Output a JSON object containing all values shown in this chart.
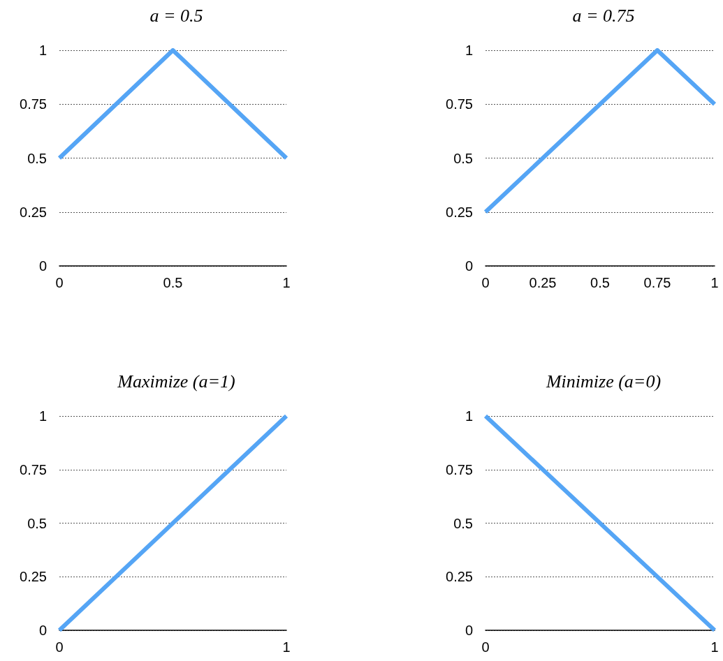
{
  "chart_data": [
    {
      "type": "line",
      "title": "a = 0.5",
      "x": [
        0,
        0.5,
        1
      ],
      "series": [
        {
          "color": "#55a5f5",
          "values": [
            0.5,
            1,
            0.5
          ]
        }
      ],
      "xlim": [
        0,
        1
      ],
      "xticks": [
        0,
        0.5,
        1
      ],
      "ylim": [
        0,
        1
      ],
      "yticks": [
        0,
        0.25,
        0.5,
        0.75,
        1
      ],
      "grid": "y",
      "line_style": "solid"
    },
    {
      "type": "line",
      "title": "a = 0.75",
      "x": [
        0,
        0.75,
        1
      ],
      "series": [
        {
          "color": "#55a5f5",
          "values": [
            0.25,
            1,
            0.75
          ]
        }
      ],
      "xlim": [
        0,
        1
      ],
      "xticks": [
        0,
        0.25,
        0.5,
        0.75,
        1
      ],
      "ylim": [
        0,
        1
      ],
      "yticks": [
        0,
        0.25,
        0.5,
        0.75,
        1
      ],
      "grid": "y",
      "line_style": "solid"
    },
    {
      "type": "line",
      "title": "Maximize (a=1)",
      "x": [
        0,
        1
      ],
      "series": [
        {
          "color": "#55a5f5",
          "values": [
            0,
            1
          ]
        }
      ],
      "xlim": [
        0,
        1
      ],
      "xticks": [
        0,
        1
      ],
      "ylim": [
        0,
        1
      ],
      "yticks": [
        0,
        0.25,
        0.5,
        0.75,
        1
      ],
      "grid": "y",
      "line_style": "solid"
    },
    {
      "type": "line",
      "title": "Minimize (a=0)",
      "x": [
        0,
        1
      ],
      "series": [
        {
          "color": "#55a5f5",
          "values": [
            1,
            0
          ]
        }
      ],
      "xlim": [
        0,
        1
      ],
      "xticks": [
        0,
        1
      ],
      "ylim": [
        0,
        1
      ],
      "yticks": [
        0,
        0.25,
        0.5,
        0.75,
        1
      ],
      "grid": "y",
      "line_style": "solid"
    }
  ]
}
